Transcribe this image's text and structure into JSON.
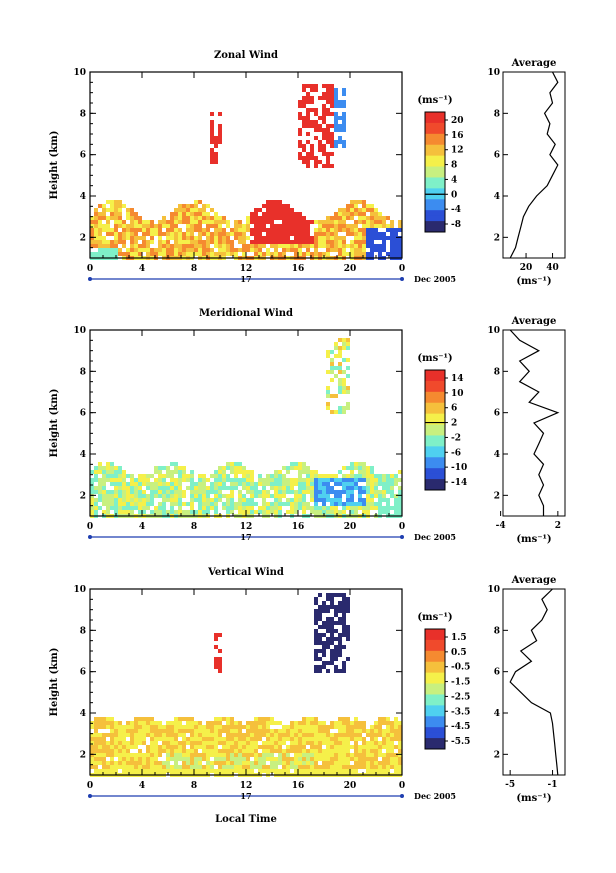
{
  "panels": [
    {
      "id": "zonal",
      "title": "Zonal Wind",
      "ylabel": "Height (km)",
      "unit_label": "(ms⁻¹)",
      "avg_title": "Average",
      "avg_unit": "(ms⁻¹)",
      "avg_ticks": [
        "20",
        "40"
      ],
      "cb_ticks": [
        "20",
        "16",
        "12",
        "8",
        "4",
        "0",
        "-4",
        "-8"
      ],
      "cb_zero_label": "0"
    },
    {
      "id": "meridional",
      "title": "Meridional Wind",
      "ylabel": "Height (km)",
      "unit_label": "(ms⁻¹)",
      "avg_title": "Average",
      "avg_unit": "(ms⁻¹)",
      "avg_ticks": [
        "-4",
        "2"
      ],
      "cb_ticks": [
        "14",
        "10",
        "6",
        "2",
        "-2",
        "-6",
        "-10",
        "-14"
      ],
      "cb_zero_label": "2"
    },
    {
      "id": "vertical",
      "title": "Vertical Wind",
      "ylabel": "Height (km)",
      "unit_label": "(ms⁻¹)",
      "avg_title": "Average",
      "avg_unit": "(ms⁻¹)",
      "avg_ticks": [
        "-5",
        "-1"
      ],
      "cb_ticks": [
        "1.5",
        "0.5",
        "-0.5",
        "-1.5",
        "-2.5",
        "-3.5",
        "-4.5",
        "-5.5"
      ],
      "cb_zero_label": ""
    }
  ],
  "x_ticks": [
    "0",
    "4",
    "8",
    "12",
    "16",
    "20",
    "0"
  ],
  "y_ticks": [
    "2",
    "4",
    "6",
    "8",
    "10"
  ],
  "date_day": "17",
  "date_label": "Dec 2005",
  "xlabel": "Local Time",
  "colors": {
    "jet": [
      "#2a2a6e",
      "#2b4fd6",
      "#3c8cf0",
      "#4fd0f0",
      "#7ff0c8",
      "#c8f080",
      "#f5f04a",
      "#f5c03c",
      "#f58a30",
      "#f04a2c",
      "#e8302a"
    ],
    "date_axis": "#1f3fb0"
  },
  "chart_data": [
    {
      "type": "heatmap",
      "title": "Zonal Wind",
      "ylabel": "Height (km)",
      "xlabel": "Local Time",
      "xlim": [
        0,
        24
      ],
      "ylim": [
        1,
        10
      ],
      "colorbar": {
        "unit": "ms⁻¹",
        "ticks": [
          20,
          16,
          12,
          8,
          4,
          0,
          -4,
          -8
        ]
      },
      "features": [
        {
          "region": "boundary layer 0-1 LT to 23 LT",
          "height_km": [
            1,
            3.5
          ],
          "value_range": [
            4,
            16
          ]
        },
        {
          "region": "12-17 LT",
          "height_km": [
            1.5,
            3.5
          ],
          "value": 20
        },
        {
          "region": "21-24 LT",
          "height_km": [
            1,
            2.5
          ],
          "value": -8
        },
        {
          "region": "16-19 LT",
          "height_km": [
            5.5,
            9.5
          ],
          "value": 20
        }
      ],
      "average_profile": {
        "title": "Average",
        "unit": "ms⁻¹",
        "height_km": [
          1.0,
          1.5,
          2.0,
          2.5,
          3.0,
          3.5,
          4.0,
          4.5,
          5.0,
          5.5,
          6.0,
          6.5,
          7.0,
          7.5,
          8.0,
          8.5,
          9.0,
          9.5,
          10.0
        ],
        "value": [
          8,
          12,
          14,
          16,
          18,
          22,
          28,
          36,
          40,
          44,
          38,
          42,
          36,
          38,
          34,
          40,
          38,
          44,
          40
        ]
      }
    },
    {
      "type": "heatmap",
      "title": "Meridional Wind",
      "ylabel": "Height (km)",
      "xlabel": "Local Time",
      "xlim": [
        0,
        24
      ],
      "ylim": [
        1,
        10
      ],
      "colorbar": {
        "unit": "ms⁻¹",
        "ticks": [
          14,
          10,
          6,
          2,
          -2,
          -6,
          -10,
          -14
        ]
      },
      "features": [
        {
          "region": "0-24 LT",
          "height_km": [
            1,
            3.5
          ],
          "value_range": [
            -2,
            4
          ]
        },
        {
          "region": "17-21 LT",
          "height_km": [
            1.5,
            3
          ],
          "value": -8
        },
        {
          "region": "18-20 LT",
          "height_km": [
            6,
            10
          ],
          "value_range": [
            -2,
            6
          ]
        }
      ],
      "average_profile": {
        "title": "Average",
        "unit": "ms⁻¹",
        "height_km": [
          1.0,
          1.5,
          2.0,
          2.5,
          3.0,
          3.5,
          4.0,
          4.5,
          5.0,
          5.5,
          6.0,
          6.5,
          7.0,
          7.5,
          8.0,
          8.5,
          9.0,
          9.5,
          10.0
        ],
        "value": [
          0.5,
          0.5,
          0,
          0.5,
          0,
          0.5,
          -0.5,
          0,
          0.5,
          -0.5,
          2,
          -1,
          0,
          -2,
          -1,
          -2,
          0,
          -2,
          -3
        ]
      }
    },
    {
      "type": "heatmap",
      "title": "Vertical Wind",
      "ylabel": "Height (km)",
      "xlabel": "Local Time",
      "xlim": [
        0,
        24
      ],
      "ylim": [
        1,
        10
      ],
      "colorbar": {
        "unit": "ms⁻¹",
        "ticks": [
          1.5,
          0.5,
          -0.5,
          -1.5,
          -2.5,
          -3.5,
          -4.5,
          -5.5
        ]
      },
      "features": [
        {
          "region": "0-24 LT",
          "height_km": [
            1,
            3.8
          ],
          "value_range": [
            -1.5,
            0
          ]
        },
        {
          "region": "17-20 LT",
          "height_km": [
            6,
            10
          ],
          "value": -5.5
        }
      ],
      "average_profile": {
        "title": "Average",
        "unit": "ms⁻¹",
        "height_km": [
          1.0,
          1.5,
          2.0,
          2.5,
          3.0,
          3.5,
          4.0,
          4.5,
          5.0,
          5.5,
          6.0,
          6.5,
          7.0,
          7.5,
          8.0,
          8.5,
          9.0,
          9.5,
          10.0
        ],
        "value": [
          -0.5,
          -0.6,
          -0.7,
          -0.8,
          -0.9,
          -1.0,
          -1.2,
          -3.0,
          -4.0,
          -5.0,
          -4.5,
          -3.0,
          -4.0,
          -2.5,
          -3.0,
          -2.0,
          -1.5,
          -2.0,
          -1.0
        ]
      }
    }
  ]
}
